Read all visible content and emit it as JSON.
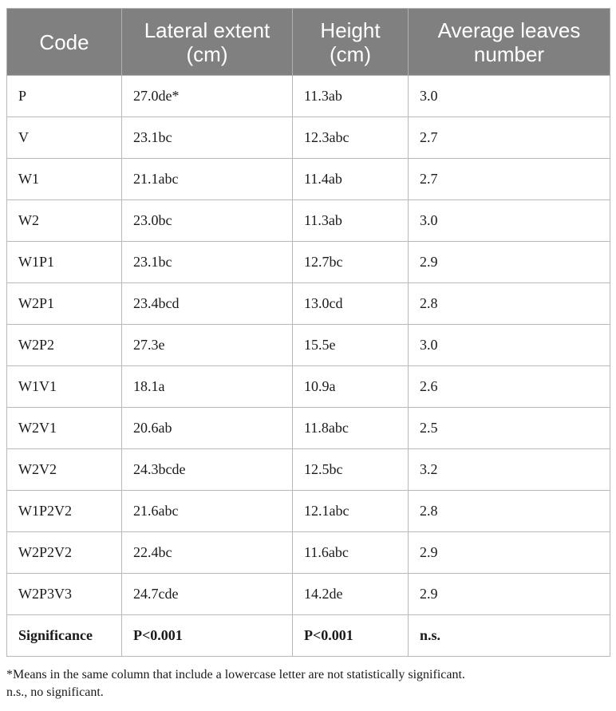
{
  "table": {
    "headers": [
      "Code",
      "Lateral extent (cm)",
      "Height (cm)",
      "Average leaves number"
    ],
    "rows": [
      [
        "P",
        "27.0de*",
        "11.3ab",
        "3.0"
      ],
      [
        "V",
        "23.1bc",
        "12.3abc",
        "2.7"
      ],
      [
        "W1",
        "21.1abc",
        "11.4ab",
        "2.7"
      ],
      [
        "W2",
        "23.0bc",
        "11.3ab",
        "3.0"
      ],
      [
        "W1P1",
        "23.1bc",
        "12.7bc",
        "2.9"
      ],
      [
        "W2P1",
        "23.4bcd",
        "13.0cd",
        "2.8"
      ],
      [
        "W2P2",
        "27.3e",
        "15.5e",
        "3.0"
      ],
      [
        "W1V1",
        "18.1a",
        "10.9a",
        "2.6"
      ],
      [
        "W2V1",
        "20.6ab",
        "11.8abc",
        "2.5"
      ],
      [
        "W2V2",
        "24.3bcde",
        "12.5bc",
        "3.2"
      ],
      [
        "W1P2V2",
        "21.6abc",
        "12.1abc",
        "2.8"
      ],
      [
        "W2P2V2",
        "22.4bc",
        "11.6abc",
        "2.9"
      ],
      [
        "W2P3V3",
        "24.7cde",
        "14.2de",
        "2.9"
      ]
    ],
    "significance_row": [
      "Significance",
      "P<0.001",
      "P<0.001",
      "n.s."
    ]
  },
  "footnote": {
    "line1": "*Means in the same column that include a lowercase letter are not statistically significant.",
    "line2": "n.s., no significant."
  },
  "colors": {
    "header_bg": "#808080",
    "header_text": "#ffffff",
    "border": "#b8b8b8"
  }
}
